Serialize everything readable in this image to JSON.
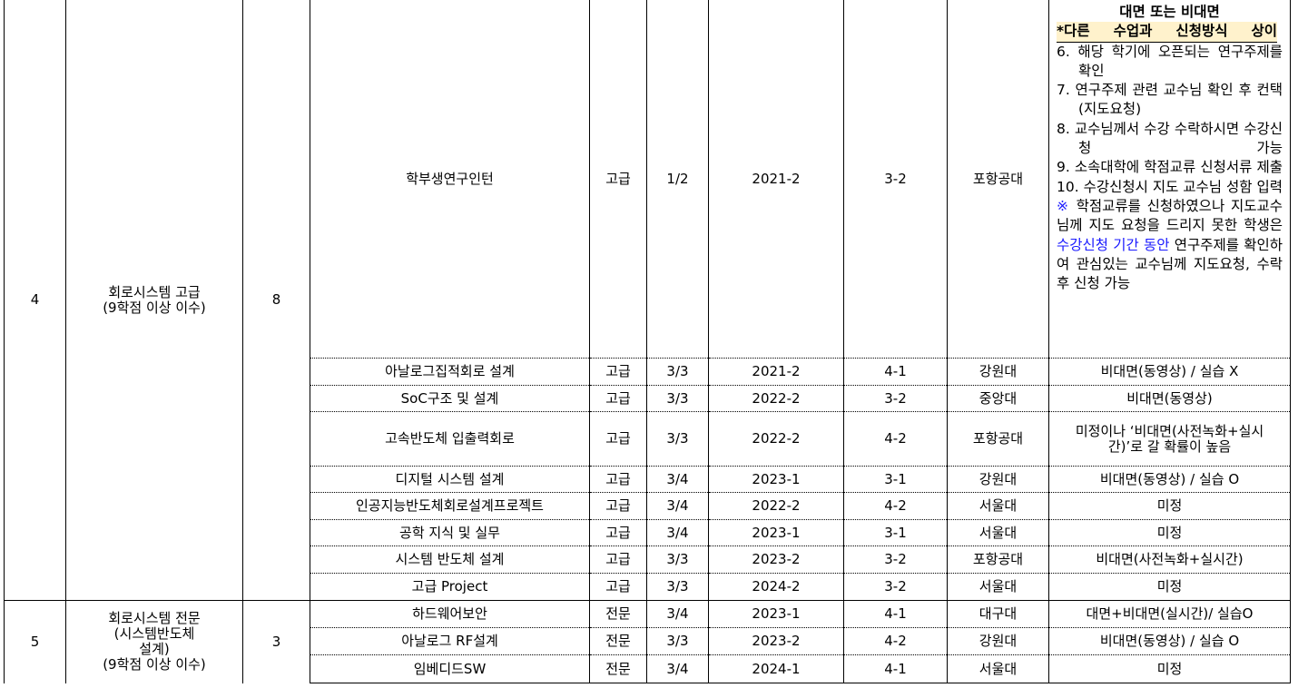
{
  "groups": [
    {
      "no": "4",
      "area": "회로시스템 고급",
      "area_note": "(9학점 이상 이수)",
      "credits": "8"
    },
    {
      "no": "5",
      "area": "회로시스템 전문",
      "area_sub1": "(시스템반도체",
      "area_sub2": "설계)",
      "area_note": "(9학점 이상 이수)",
      "credits": "3"
    }
  ],
  "courses": [
    {
      "name": "학부생연구인턴",
      "level": "고급",
      "credit": "1/2",
      "term": "2021-2",
      "year": "3-2",
      "univ": "포항공대"
    },
    {
      "name": "아날로그집적회로 설계",
      "level": "고급",
      "credit": "3/3",
      "term": "2021-2",
      "year": "4-1",
      "univ": "강원대",
      "mode": "비대면(동영상) / 실습 X"
    },
    {
      "name": "SoC구조 및 설계",
      "level": "고급",
      "credit": "3/3",
      "term": "2022-2",
      "year": "3-2",
      "univ": "중앙대",
      "mode": "비대면(동영상)"
    },
    {
      "name": "고속반도체 입출력회로",
      "level": "고급",
      "credit": "3/3",
      "term": "2022-2",
      "year": "4-2",
      "univ": "포항공대",
      "mode": "미정이나 ‘비대면(사전녹화+실시간)’로 갈 확률이 높음"
    },
    {
      "name": "디지털 시스템 설계",
      "level": "고급",
      "credit": "3/4",
      "term": "2023-1",
      "year": "3-1",
      "univ": "강원대",
      "mode": "비대면(동영상) / 실습 O"
    },
    {
      "name": "인공지능반도체회로설계프로젝트",
      "level": "고급",
      "credit": "3/4",
      "term": "2022-2",
      "year": "4-2",
      "univ": "서울대",
      "mode": "미정"
    },
    {
      "name": "공학 지식 및 실무",
      "level": "고급",
      "credit": "3/4",
      "term": "2023-1",
      "year": "3-1",
      "univ": "서울대",
      "mode": "미정"
    },
    {
      "name": "시스템 반도체 설계",
      "level": "고급",
      "credit": "3/3",
      "term": "2023-2",
      "year": "3-2",
      "univ": "포항공대",
      "mode": "비대면(사전녹화+실시간)"
    },
    {
      "name": "고급 Project",
      "level": "고급",
      "credit": "3/3",
      "term": "2024-2",
      "year": "3-2",
      "univ": "서울대",
      "mode": "미정"
    },
    {
      "name": "하드웨어보안",
      "level": "전문",
      "credit": "3/4",
      "term": "2023-1",
      "year": "4-1",
      "univ": "대구대",
      "mode": "대면+비대면(실시간)/ 실습O"
    },
    {
      "name": "아날로그 RF설계",
      "level": "전문",
      "credit": "3/3",
      "term": "2023-2",
      "year": "4-2",
      "univ": "강원대",
      "mode": "비대면(동영상) / 실습 O"
    },
    {
      "name": "임베디드SW",
      "level": "전문",
      "credit": "3/4",
      "term": "2024-1",
      "year": "4-1",
      "univ": "서울대",
      "mode": "미정"
    }
  ],
  "intern_note": {
    "title": "대면 또는 비대면",
    "highlight": "*다른 수업과 신청방식 상이",
    "steps": [
      "6. 해당 학기에 오픈되는 연구주제를 확인",
      "7. 연구주제 관련 교수님 확인 후 컨택(지도요청)",
      "8. 교수님께서 수강 수락하시면 수강신청 가능",
      "9. 소속대학에 학점교류 신청서류 제출",
      "10. 수강신청시 지도 교수님 성함 입력"
    ],
    "remark_mark": "※",
    "remark_a": " 학점교류를 신청하였으나 지도교수님께 지도 요청을 드리지 못한 학생은 ",
    "remark_blue": "수강신청 기간 동안",
    "remark_b": " 연구주제를 확인하여 관심있는 교수님께 지도요청, 수락 후 신청 가능"
  },
  "colors": {
    "highlight": "#fff2cc",
    "link_blue": "#1a1aff"
  }
}
